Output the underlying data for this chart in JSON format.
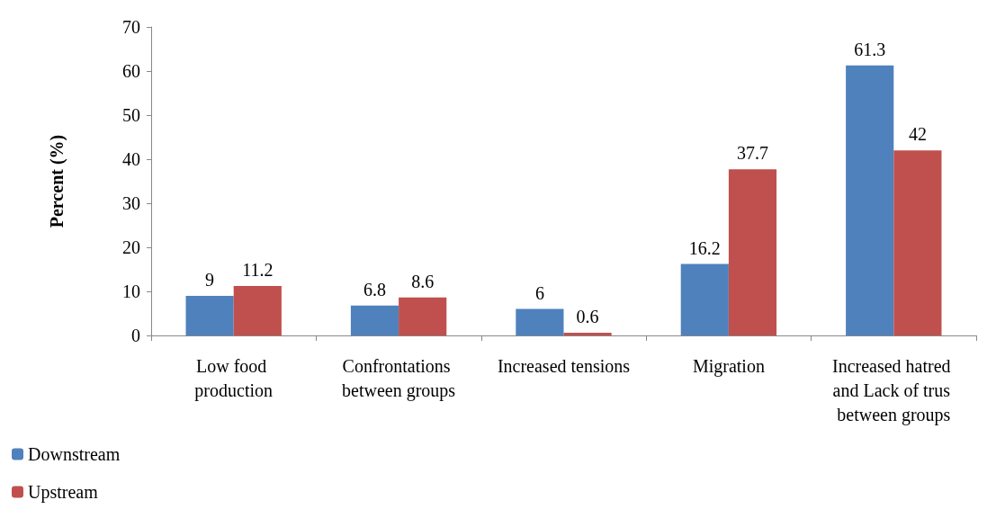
{
  "chart_data": {
    "type": "bar",
    "ylabel": "Percent (%)",
    "categories": [
      "Low food production",
      "Confrontations between groups",
      "Increased tensions",
      "Migration",
      "Increased hatred and Lack of trus between groups"
    ],
    "series": [
      {
        "name": "Downstream",
        "color": "#4f81bd",
        "values": [
          9,
          6.8,
          6,
          16.2,
          61.3
        ]
      },
      {
        "name": "Upstream",
        "color": "#c0504d",
        "values": [
          11.2,
          8.6,
          0.6,
          37.7,
          42
        ]
      }
    ],
    "ylim": [
      0,
      70
    ],
    "yticks": [
      0,
      10,
      20,
      30,
      40,
      50,
      60,
      70
    ],
    "grid": false,
    "data_labels": true,
    "legend": "bottom left"
  }
}
